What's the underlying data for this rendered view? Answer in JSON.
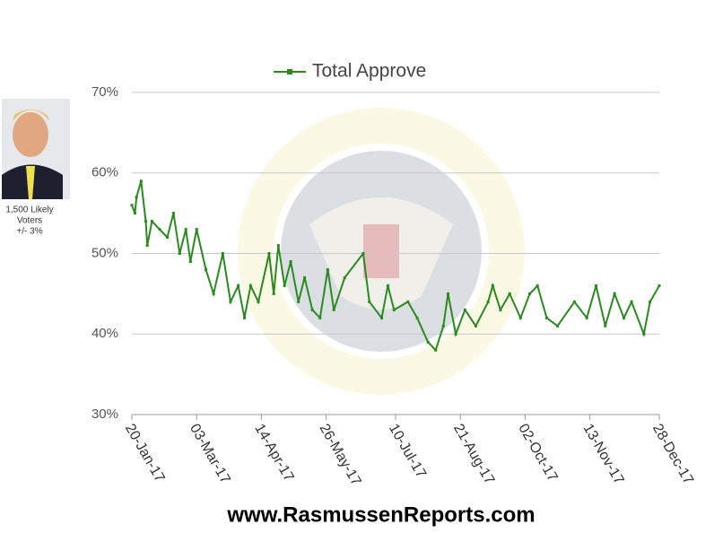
{
  "sidebar": {
    "caption": [
      "1,500 Likely",
      "Voters",
      "+/- 3%"
    ]
  },
  "footer": "www.RasmussenReports.com",
  "chart_data": {
    "type": "line",
    "series": [
      {
        "name": "Total Approve",
        "color": "#2a8a1f",
        "x": [
          "20-Jan-17",
          "22-Jan-17",
          "23-Jan-17",
          "26-Jan-17",
          "29-Jan-17",
          "30-Jan-17",
          "02-Feb-17",
          "07-Feb-17",
          "12-Feb-17",
          "16-Feb-17",
          "20-Feb-17",
          "24-Feb-17",
          "27-Feb-17",
          "03-Mar-17",
          "09-Mar-17",
          "14-Mar-17",
          "20-Mar-17",
          "25-Mar-17",
          "30-Mar-17",
          "03-Apr-17",
          "07-Apr-17",
          "12-Apr-17",
          "19-Apr-17",
          "22-Apr-17",
          "25-Apr-17",
          "29-Apr-17",
          "03-May-17",
          "08-May-17",
          "12-May-17",
          "17-May-17",
          "22-May-17",
          "27-May-17",
          "31-May-17",
          "07-Jun-17",
          "19-Jun-17",
          "23-Jun-17",
          "01-Jul-17",
          "05-Jul-17",
          "09-Jul-17",
          "18-Jul-17",
          "24-Jul-17",
          "31-Jul-17",
          "05-Aug-17",
          "10-Aug-17",
          "13-Aug-17",
          "18-Aug-17",
          "24-Aug-17",
          "31-Aug-17",
          "08-Sep-17",
          "11-Sep-17",
          "16-Sep-17",
          "22-Sep-17",
          "29-Sep-17",
          "05-Oct-17",
          "10-Oct-17",
          "16-Oct-17",
          "23-Oct-17",
          "03-Nov-17",
          "11-Nov-17",
          "17-Nov-17",
          "23-Nov-17",
          "29-Nov-17",
          "05-Dec-17",
          "10-Dec-17",
          "18-Dec-17",
          "22-Dec-17",
          "28-Dec-17"
        ],
        "values": [
          56,
          55,
          57,
          59,
          54,
          51,
          54,
          53,
          52,
          55,
          50,
          53,
          49,
          53,
          48,
          45,
          50,
          44,
          46,
          42,
          46,
          44,
          50,
          45,
          51,
          46,
          49,
          44,
          47,
          43,
          42,
          48,
          43,
          47,
          50,
          44,
          42,
          46,
          43,
          44,
          42,
          39,
          38,
          41,
          45,
          40,
          43,
          41,
          44,
          46,
          43,
          45,
          42,
          45,
          46,
          42,
          41,
          44,
          42,
          46,
          41,
          45,
          42,
          44,
          40,
          44,
          46
        ]
      }
    ],
    "xlim": [
      "20-Jan-17",
      "28-Dec-17"
    ],
    "xticks": [
      "20-Jan-17",
      "03-Mar-17",
      "14-Apr-17",
      "26-May-17",
      "10-Jul-17",
      "21-Aug-17",
      "02-Oct-17",
      "13-Nov-17",
      "28-Dec-17"
    ],
    "ylim": [
      30,
      70
    ],
    "yticks": [
      {
        "value": 30,
        "label": "30%"
      },
      {
        "value": 40,
        "label": "40%"
      },
      {
        "value": 50,
        "label": "50%"
      },
      {
        "value": 60,
        "label": "60%"
      },
      {
        "value": 70,
        "label": "70%"
      }
    ],
    "grid": true,
    "legend": "top"
  }
}
